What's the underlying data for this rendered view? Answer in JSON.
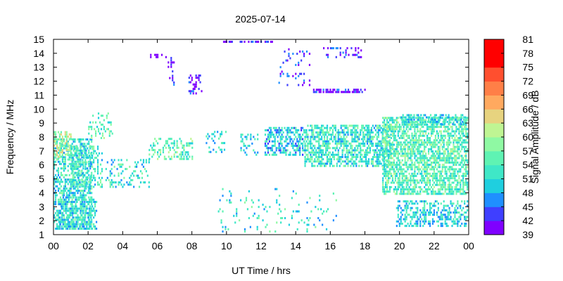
{
  "chart_data": {
    "type": "heatmap",
    "title": "2025-07-14",
    "xlabel": "UT Time / hrs",
    "ylabel": "Frequency / MHz",
    "colorbar_label": "Signal Amplitude / dB",
    "x_ticks": [
      "00",
      "02",
      "04",
      "06",
      "08",
      "10",
      "12",
      "14",
      "16",
      "18",
      "20",
      "22",
      "00"
    ],
    "xlim": [
      0,
      24
    ],
    "ylim": [
      1,
      15
    ],
    "y_ticks": [
      1,
      2,
      3,
      4,
      5,
      6,
      7,
      8,
      9,
      10,
      11,
      12,
      13,
      14,
      15
    ],
    "colorbar": {
      "range": [
        39,
        81
      ],
      "ticks": [
        39,
        42,
        45,
        48,
        51,
        54,
        57,
        60,
        63,
        66,
        69,
        72,
        75,
        78,
        81
      ],
      "colors": [
        "#7f00ff",
        "#3f3fff",
        "#1f8fff",
        "#1fcfdf",
        "#3fe7c7",
        "#5ff3b3",
        "#8ff9a3",
        "#bff593",
        "#e7d37f",
        "#ffa95f",
        "#ff7f47",
        "#ff4f2f",
        "#ff0000",
        "#ff0000"
      ]
    },
    "grid": false,
    "legend": "colorbar-right",
    "clusters": [
      {
        "t": [
          0.0,
          2.2
        ],
        "f": [
          1.5,
          8.0
        ],
        "amp": 52,
        "density": 0.55
      },
      {
        "t": [
          0.0,
          1.0
        ],
        "f": [
          6.5,
          8.5
        ],
        "amp": 60,
        "density": 0.5
      },
      {
        "t": [
          1.0,
          2.8
        ],
        "f": [
          4.5,
          7.5
        ],
        "amp": 53,
        "density": 0.35
      },
      {
        "t": [
          0.2,
          2.5
        ],
        "f": [
          1.5,
          3.8
        ],
        "amp": 51,
        "density": 0.45
      },
      {
        "t": [
          2.0,
          3.5
        ],
        "f": [
          8.0,
          9.8
        ],
        "amp": 55,
        "density": 0.25
      },
      {
        "t": [
          3.0,
          5.5
        ],
        "f": [
          4.5,
          6.5
        ],
        "amp": 52,
        "density": 0.2
      },
      {
        "t": [
          5.5,
          8.0
        ],
        "f": [
          6.5,
          8.0
        ],
        "amp": 55,
        "density": 0.3
      },
      {
        "t": [
          5.5,
          6.5
        ],
        "f": [
          13.8,
          14.0
        ],
        "amp": 40,
        "density": 0.6
      },
      {
        "t": [
          6.6,
          7.0
        ],
        "f": [
          11.5,
          13.8
        ],
        "amp": 41,
        "density": 0.25
      },
      {
        "t": [
          7.8,
          8.6
        ],
        "f": [
          11.2,
          12.5
        ],
        "amp": 41,
        "density": 0.3
      },
      {
        "t": [
          9.8,
          12.8
        ],
        "f": [
          14.9,
          15.0
        ],
        "amp": 40,
        "density": 0.5
      },
      {
        "t": [
          8.8,
          10.0
        ],
        "f": [
          7.0,
          8.5
        ],
        "amp": 51,
        "density": 0.2
      },
      {
        "t": [
          10.8,
          11.8
        ],
        "f": [
          6.8,
          8.3
        ],
        "amp": 51,
        "density": 0.3
      },
      {
        "t": [
          12.2,
          14.5
        ],
        "f": [
          6.8,
          8.8
        ],
        "amp": 50,
        "density": 0.55
      },
      {
        "t": [
          14.5,
          19.5
        ],
        "f": [
          6.0,
          9.0
        ],
        "amp": 53,
        "density": 0.6
      },
      {
        "t": [
          15.0,
          18.0
        ],
        "f": [
          11.3,
          11.6
        ],
        "amp": 42,
        "density": 0.6
      },
      {
        "t": [
          13.0,
          14.8
        ],
        "f": [
          11.8,
          14.5
        ],
        "amp": 42,
        "density": 0.15
      },
      {
        "t": [
          15.5,
          17.8
        ],
        "f": [
          13.8,
          14.5
        ],
        "amp": 42,
        "density": 0.25
      },
      {
        "t": [
          19.0,
          24.0
        ],
        "f": [
          4.0,
          9.5
        ],
        "amp": 55,
        "density": 0.65
      },
      {
        "t": [
          20.0,
          24.0
        ],
        "f": [
          9.0,
          9.8
        ],
        "amp": 51,
        "density": 0.45
      },
      {
        "t": [
          19.8,
          24.0
        ],
        "f": [
          1.7,
          3.5
        ],
        "amp": 51,
        "density": 0.45
      },
      {
        "t": [
          9.5,
          16.5
        ],
        "f": [
          1.3,
          4.5
        ],
        "amp": 52,
        "density": 0.06
      }
    ]
  }
}
